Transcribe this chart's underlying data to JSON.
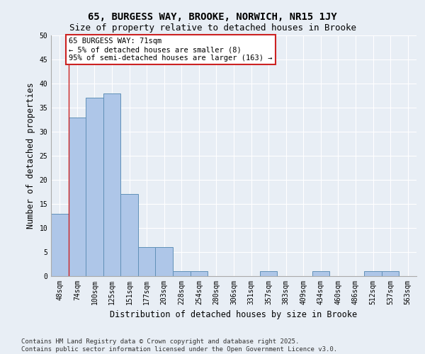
{
  "title_line1": "65, BURGESS WAY, BROOKE, NORWICH, NR15 1JY",
  "title_line2": "Size of property relative to detached houses in Brooke",
  "xlabel": "Distribution of detached houses by size in Brooke",
  "ylabel": "Number of detached properties",
  "categories": [
    "48sqm",
    "74sqm",
    "100sqm",
    "125sqm",
    "151sqm",
    "177sqm",
    "203sqm",
    "228sqm",
    "254sqm",
    "280sqm",
    "306sqm",
    "331sqm",
    "357sqm",
    "383sqm",
    "409sqm",
    "434sqm",
    "460sqm",
    "486sqm",
    "512sqm",
    "537sqm",
    "563sqm"
  ],
  "values": [
    13,
    33,
    37,
    38,
    17,
    6,
    6,
    1,
    1,
    0,
    0,
    0,
    1,
    0,
    0,
    1,
    0,
    0,
    1,
    1,
    0
  ],
  "bar_color": "#aec6e8",
  "bar_edge_color": "#6090b8",
  "highlight_color": "#cc2222",
  "annotation_text": "65 BURGESS WAY: 71sqm\n← 5% of detached houses are smaller (8)\n95% of semi-detached houses are larger (163) →",
  "annotation_box_color": "#ffffff",
  "annotation_box_edge": "#cc2222",
  "ylim": [
    0,
    50
  ],
  "yticks": [
    0,
    5,
    10,
    15,
    20,
    25,
    30,
    35,
    40,
    45,
    50
  ],
  "background_color": "#e8eef5",
  "grid_color": "#ffffff",
  "footer_line1": "Contains HM Land Registry data © Crown copyright and database right 2025.",
  "footer_line2": "Contains public sector information licensed under the Open Government Licence v3.0.",
  "title_fontsize": 10,
  "subtitle_fontsize": 9,
  "axis_label_fontsize": 8.5,
  "tick_fontsize": 7,
  "annotation_fontsize": 7.5,
  "footer_fontsize": 6.5
}
